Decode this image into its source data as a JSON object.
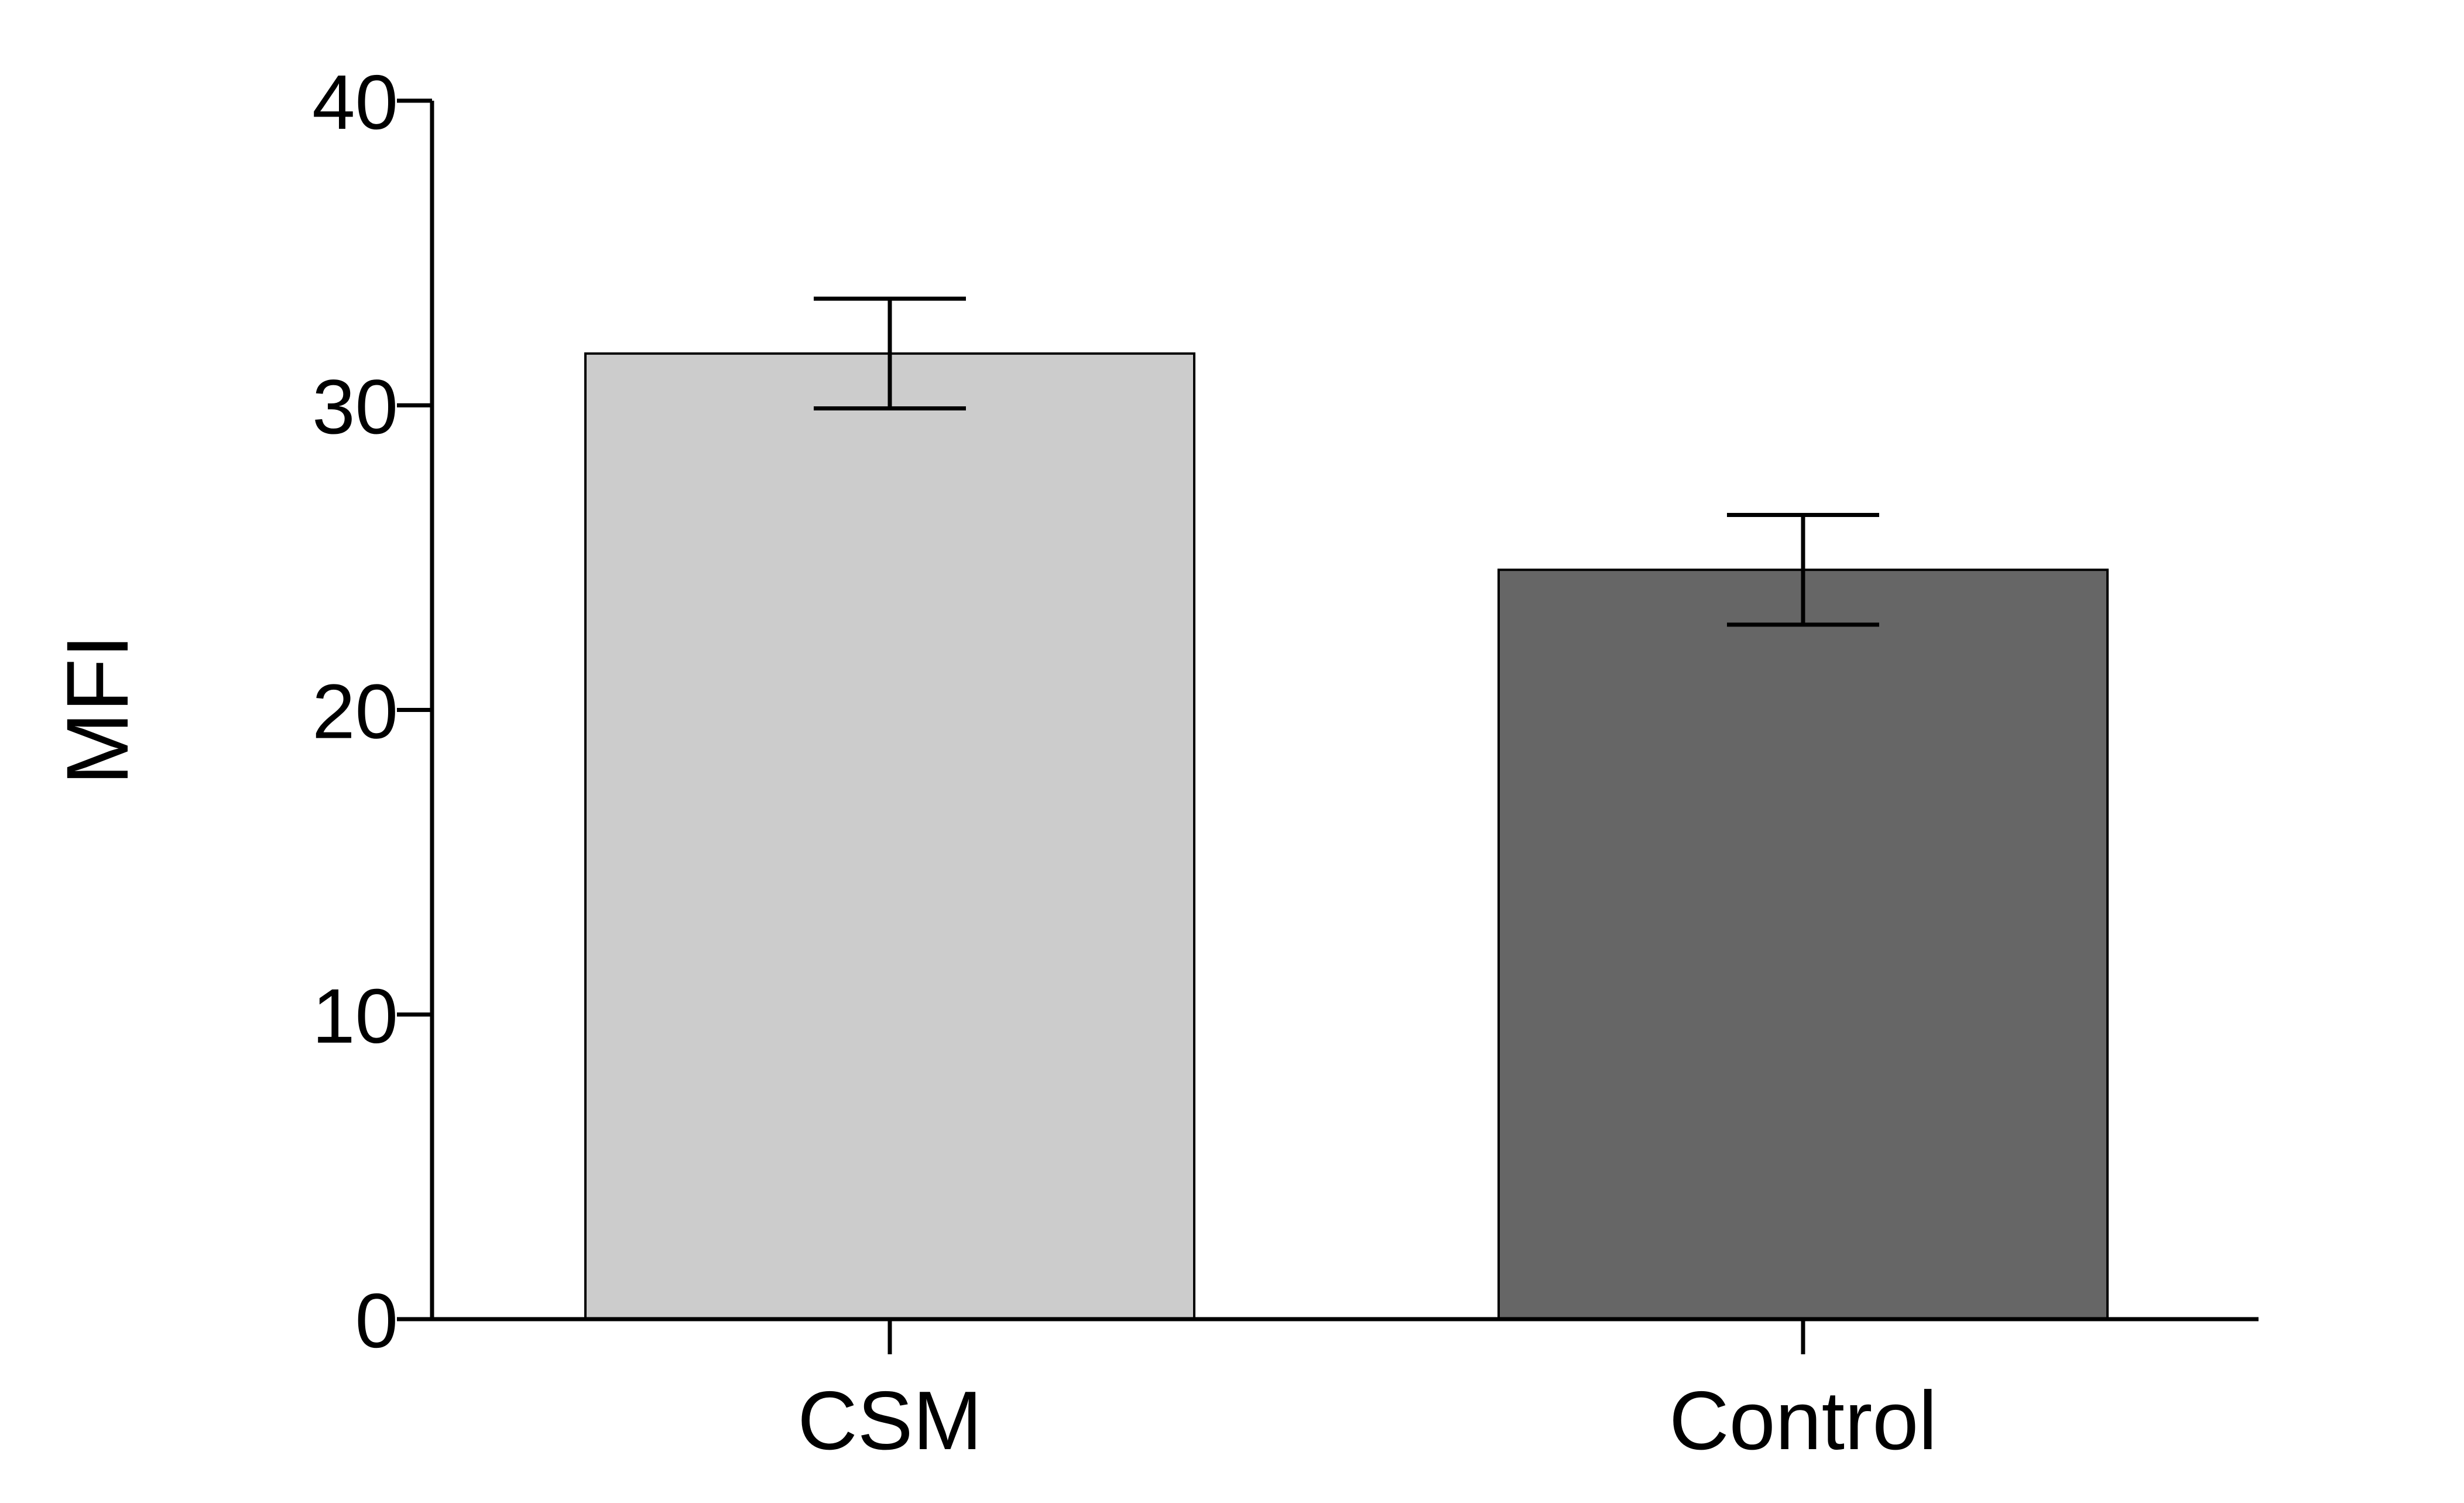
{
  "chart_data": {
    "type": "bar",
    "categories": [
      "CSM",
      "Control"
    ],
    "values": [
      31.7,
      24.6
    ],
    "error_upper": [
      33.5,
      26.4
    ],
    "error_lower": [
      29.9,
      22.8
    ],
    "bar_colors": [
      "#cccccc",
      "#666666"
    ],
    "title": "",
    "xlabel": "",
    "ylabel": "MFI",
    "ylim": [
      0,
      40
    ],
    "yticks": [
      "0",
      "10",
      "20",
      "30",
      "40"
    ],
    "grid": false
  }
}
